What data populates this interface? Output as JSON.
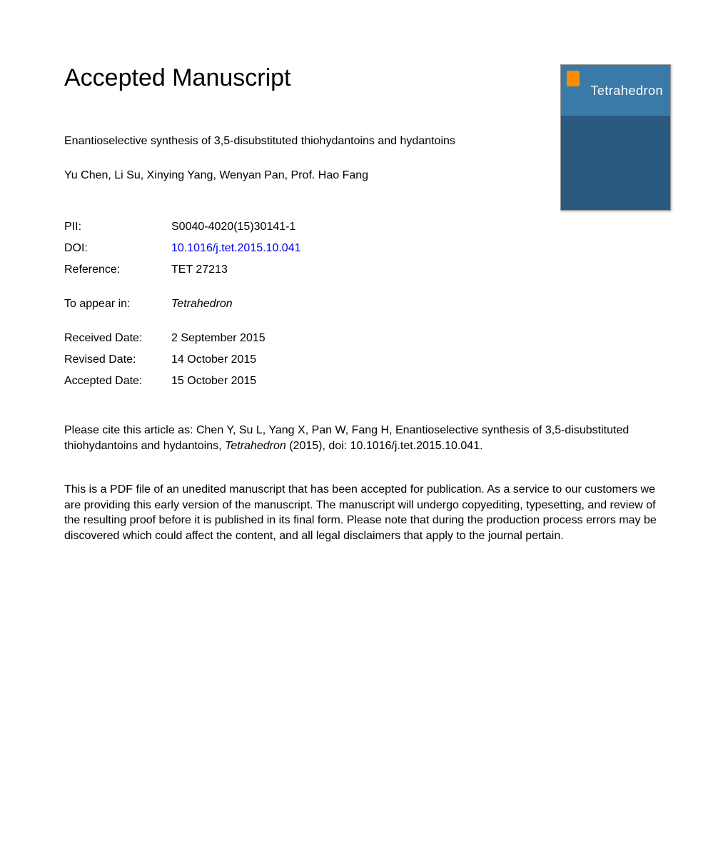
{
  "header": {
    "title": "Accepted Manuscript"
  },
  "article": {
    "title": "Enantioselective synthesis of 3,5-disubstituted thiohydantoins and hydantoins",
    "authors": "Yu Chen, Li Su, Xinying Yang, Wenyan Pan, Prof. Hao Fang"
  },
  "meta": {
    "pii_label": "PII:",
    "pii_value": "S0040-4020(15)30141-1",
    "doi_label": "DOI:",
    "doi_value": "10.1016/j.tet.2015.10.041",
    "reference_label": "Reference:",
    "reference_value": "TET 27213",
    "appear_label": "To appear in:",
    "appear_value": "Tetrahedron",
    "received_label": "Received Date:",
    "received_value": "2 September 2015",
    "revised_label": "Revised Date:",
    "revised_value": "14 October 2015",
    "accepted_label": "Accepted Date:",
    "accepted_value": "15 October 2015"
  },
  "journal_cover": {
    "name": "Tetrahedron",
    "background_top": "#3a7aa8",
    "background_bottom": "#2a5a80"
  },
  "citation": {
    "prefix": "Please cite this article as: Chen Y, Su L, Yang X, Pan W, Fang H, Enantioselective synthesis of 3,5-disubstituted thiohydantoins and hydantoins, ",
    "journal_italic": "Tetrahedron",
    "suffix": " (2015), doi: 10.1016/j.tet.2015.10.041."
  },
  "disclaimer": "This is a PDF file of an unedited manuscript that has been accepted for publication. As a service to our customers we are providing this early version of the manuscript. The manuscript will undergo copyediting, typesetting, and review of the resulting proof before it is published in its final form. Please note that during the production process errors may be discovered which could affect the content, and all legal disclaimers that apply to the journal pertain.",
  "colors": {
    "link": "#0000ee",
    "text": "#000000",
    "background": "#ffffff"
  },
  "typography": {
    "title_fontsize": 34,
    "body_fontsize": 16,
    "font_family": "Arial"
  }
}
